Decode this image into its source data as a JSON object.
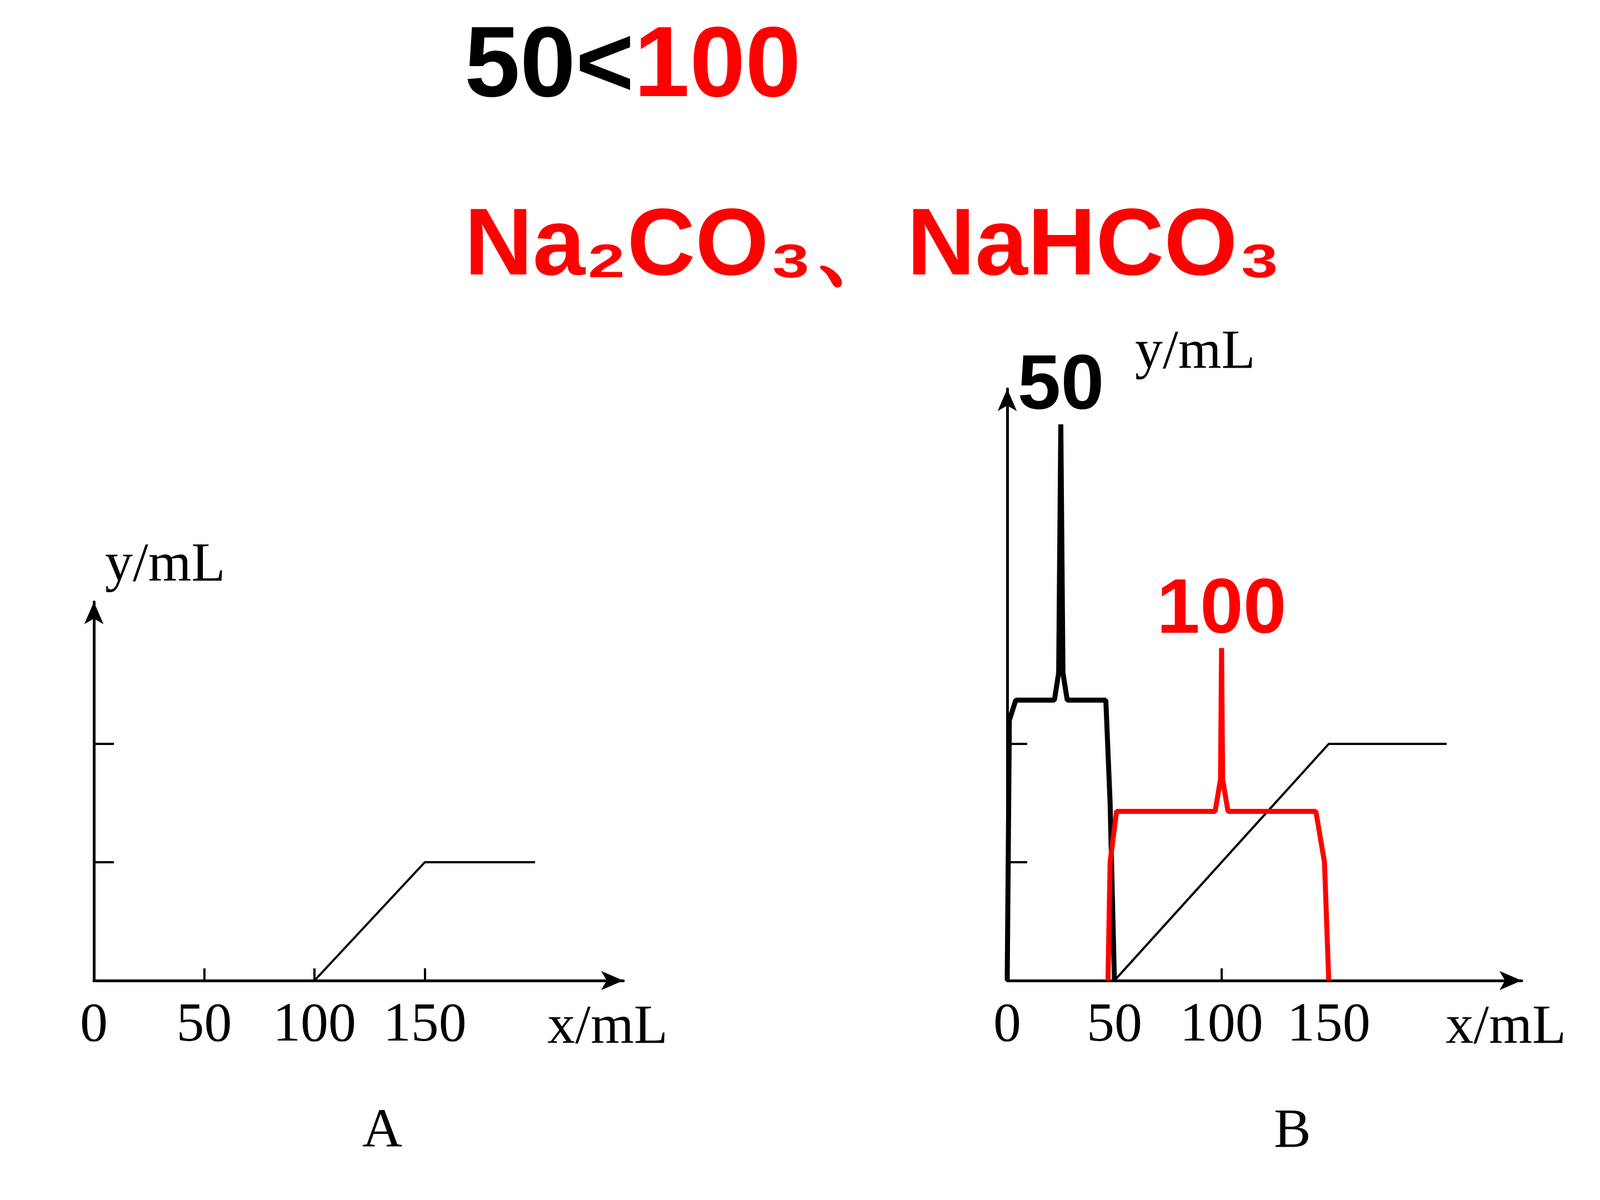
{
  "slide_text": {
    "heading": [
      {
        "text": "50<",
        "color": "#000000"
      },
      {
        "text": "100",
        "color": "#ff0000"
      }
    ],
    "formula": {
      "text": "Na₂CO₃、NaHCO₃",
      "color": "#ff0000"
    }
  },
  "chart_data": [
    {
      "type": "line",
      "title": "A",
      "x_label": "x/mL",
      "y_label": "y/mL",
      "xlim": [
        0,
        240
      ],
      "xticks": [
        0,
        50,
        100,
        150
      ],
      "ylim": [
        0,
        3.2
      ],
      "yticks": [
        0,
        1,
        2
      ],
      "tick_labels": "x",
      "grid": false,
      "series": [
        {
          "color": "#000000",
          "line_style": "solid",
          "x": [
            100,
            150,
            200
          ],
          "values": [
            0,
            1,
            1
          ]
        }
      ]
    },
    {
      "type": "line",
      "title": "B",
      "x_label": "x/mL",
      "y_label": "y/mL",
      "xlim": [
        0,
        240
      ],
      "xticks": [
        0,
        50,
        100,
        150
      ],
      "ylim": [
        0,
        5
      ],
      "yticks": [
        0,
        1,
        2
      ],
      "tick_labels": "x",
      "grid": false,
      "series": [
        {
          "color": "#000000",
          "line_style": "solid",
          "x": [
            50,
            150,
            205
          ],
          "values": [
            0,
            2,
            2
          ]
        },
        {
          "color": "#000000",
          "line_style": "solid",
          "x": [
            0,
            1,
            4,
            22,
            24,
            25,
            26,
            28,
            46,
            48,
            50
          ],
          "values": [
            0,
            2.2,
            2.37,
            2.37,
            2.6,
            4.7,
            2.6,
            2.37,
            2.37,
            1.5,
            0
          ],
          "annotation": {
            "text": "50",
            "x": 25
          }
        },
        {
          "color": "#ff0000",
          "line_style": "solid",
          "x": [
            47,
            48,
            51,
            97,
            99.5,
            100,
            100.5,
            103,
            144,
            148,
            150
          ],
          "values": [
            0,
            1,
            1.43,
            1.43,
            1.7,
            2.81,
            1.7,
            1.43,
            1.43,
            1,
            0
          ],
          "annotation": {
            "text": "100",
            "x": 100
          }
        }
      ]
    }
  ]
}
